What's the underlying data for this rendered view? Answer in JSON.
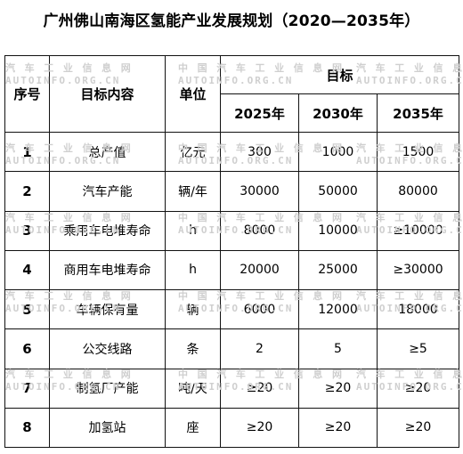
{
  "title": "广州佛山南海区氢能产业发展规划（2020—2035年）",
  "watermark": {
    "cn": "汽 车 工 业 信 息 网",
    "cn2": "中 国 汽 车 工 业 信 息 网",
    "en": "AUTOINFO.ORG.CN"
  },
  "table": {
    "headers": {
      "index": "序号",
      "content": "目标内容",
      "unit": "单位",
      "target": "目标",
      "years": [
        "2025年",
        "2030年",
        "2035年"
      ]
    },
    "rows": [
      {
        "index": "1",
        "content": "总产值",
        "unit": "亿元",
        "v2025": "300",
        "v2030": "1000",
        "v2035": "1500"
      },
      {
        "index": "2",
        "content": "汽车产能",
        "unit": "辆/年",
        "v2025": "30000",
        "v2030": "50000",
        "v2035": "80000"
      },
      {
        "index": "3",
        "content": "乘用车电堆寿命",
        "unit": "h",
        "v2025": "8000",
        "v2030": "10000",
        "v2035": "≥10000"
      },
      {
        "index": "4",
        "content": "商用车电堆寿命",
        "unit": "h",
        "v2025": "20000",
        "v2030": "25000",
        "v2035": "≥30000"
      },
      {
        "index": "5",
        "content": "车辆保有量",
        "unit": "辆",
        "v2025": "6000",
        "v2030": "12000",
        "v2035": "18000"
      },
      {
        "index": "6",
        "content": "公交线路",
        "unit": "条",
        "v2025": "2",
        "v2030": "5",
        "v2035": "≥5"
      },
      {
        "index": "7",
        "content": "制氢厂产能",
        "unit": "吨/天",
        "v2025": "≥20",
        "v2030": "≥20",
        "v2035": "≥20"
      },
      {
        "index": "8",
        "content": "加氢站",
        "unit": "座",
        "v2025": "≥20",
        "v2030": "≥20",
        "v2035": "≥20"
      }
    ]
  }
}
